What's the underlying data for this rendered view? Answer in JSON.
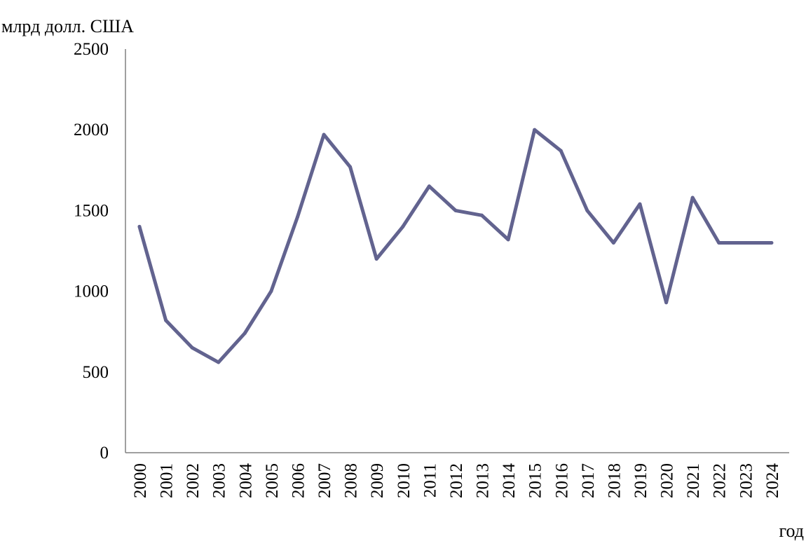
{
  "chart_data": {
    "type": "line",
    "title": "",
    "xlabel": "год",
    "ylabel": "млрд долл. США",
    "ylim": [
      0,
      2500
    ],
    "yticks": [
      0,
      500,
      1000,
      1500,
      2000,
      2500
    ],
    "grid": false,
    "legend": "none",
    "categories": [
      "2000",
      "2001",
      "2002",
      "2003",
      "2004",
      "2005",
      "2006",
      "2007",
      "2008",
      "2009",
      "2010",
      "2011",
      "2012",
      "2013",
      "2014",
      "2015",
      "2016",
      "2017",
      "2018",
      "2019",
      "2020",
      "2021",
      "2022",
      "2023",
      "2024"
    ],
    "series": [
      {
        "values": [
          1400,
          820,
          650,
          560,
          740,
          1000,
          1460,
          1970,
          1770,
          1200,
          1400,
          1650,
          1500,
          1470,
          1320,
          2000,
          1870,
          1500,
          1300,
          1540,
          930,
          1580,
          1300,
          1300,
          1300
        ],
        "color": "#62638f"
      }
    ]
  }
}
